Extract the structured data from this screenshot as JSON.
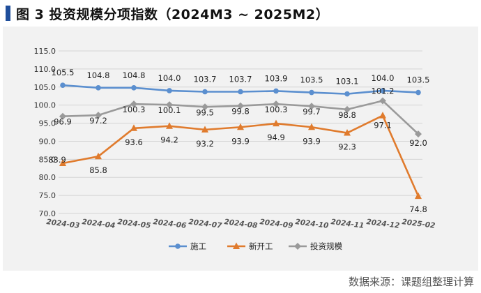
{
  "header": {
    "title": "图 3 投资规模分项指数（2024M3 ~ 2025M2）"
  },
  "footer": {
    "source": "数据来源：课题组整理计算"
  },
  "colors": {
    "construction": "#5b8fcf",
    "new_start": "#e07b2d",
    "investment_scale": "#9a9a9a",
    "title_accent": "#1f4e9b"
  },
  "chart_data": {
    "type": "line",
    "title": "",
    "xlabel": "",
    "ylabel": "",
    "ylim": [
      70,
      115
    ],
    "yticks": [
      "70.0",
      "75.0",
      "80.0",
      "85.0",
      "90.0",
      "95.0",
      "100.0",
      "105.0",
      "110.0",
      "115.0"
    ],
    "grid": true,
    "legend_position": "bottom",
    "categories": [
      "2024-03",
      "2024-04",
      "2024-05",
      "2024-06",
      "2024-07",
      "2024-08",
      "2024-09",
      "2024-10",
      "2024-11",
      "2024-12",
      "2025-02"
    ],
    "series": [
      {
        "name": "施工",
        "marker": "circle",
        "values": [
          105.5,
          104.8,
          104.8,
          104.0,
          103.7,
          103.7,
          103.9,
          103.5,
          103.1,
          104.0,
          103.5
        ]
      },
      {
        "name": "新开工",
        "marker": "triangle",
        "values": [
          83.9,
          85.8,
          93.6,
          94.2,
          93.2,
          93.9,
          94.9,
          93.9,
          92.3,
          97.1,
          74.8
        ]
      },
      {
        "name": "投资规模",
        "marker": "diamond",
        "values": [
          96.9,
          97.2,
          100.3,
          100.1,
          99.5,
          99.8,
          100.3,
          99.7,
          98.8,
          101.2,
          92.0
        ]
      }
    ]
  }
}
